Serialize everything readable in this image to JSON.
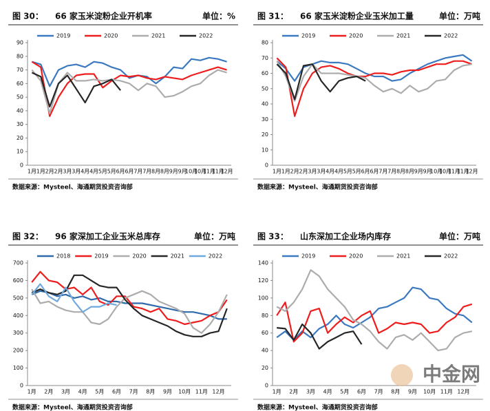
{
  "chart_data": [
    {
      "type": "line",
      "figure": "图 30：",
      "title": "66 家玉米淀粉企业开机率",
      "unit": "单位：%",
      "source": "数据来源：Mysteel、海通期货投资咨询部",
      "categories": [
        "1月",
        "1月",
        "2月",
        "2月",
        "3月",
        "3月",
        "4月",
        "4月",
        "5月",
        "5月",
        "6月",
        "6月",
        "7月",
        "7月",
        "8月",
        "8月",
        "9月",
        "9月",
        "10月",
        "10月",
        "11月",
        "11月",
        "12月"
      ],
      "ylim": [
        0,
        90
      ],
      "yticks": [
        0,
        10,
        20,
        30,
        40,
        50,
        60,
        70,
        80,
        90
      ],
      "series": [
        {
          "name": "2019",
          "color": "#3a78c0",
          "values": [
            76,
            74,
            58,
            70,
            73,
            74,
            72,
            76,
            75,
            72,
            70,
            64,
            66,
            65,
            60,
            65,
            72,
            71,
            78,
            77,
            79,
            78,
            76
          ]
        },
        {
          "name": "2020",
          "color": "#ee1c1c",
          "values": [
            76,
            72,
            36,
            50,
            60,
            66,
            67,
            67,
            57,
            62,
            66,
            65,
            66,
            64,
            63,
            65,
            64,
            63,
            66,
            68,
            70,
            72,
            70
          ]
        },
        {
          "name": "2021",
          "color": "#acacac",
          "values": [
            70,
            62,
            38,
            60,
            68,
            62,
            62,
            63,
            62,
            63,
            62,
            60,
            55,
            60,
            58,
            50,
            51,
            54,
            58,
            60,
            66,
            70,
            68
          ]
        },
        {
          "name": "2022",
          "color": "#262626",
          "values": [
            68,
            65,
            43,
            60,
            66,
            56,
            46,
            58,
            60,
            63,
            55,
            null,
            null,
            null,
            null,
            null,
            null,
            null,
            null,
            null,
            null,
            null,
            null
          ]
        }
      ]
    },
    {
      "type": "line",
      "figure": "图 31：",
      "title": "66 家玉米淀粉企业玉米加工量",
      "unit": "单位：万吨",
      "source": "数据来源：Mysteel、海通期货投资咨询部",
      "categories": [
        "1月",
        "1月",
        "2月",
        "2月",
        "3月",
        "3月",
        "4月",
        "4月",
        "5月",
        "5月",
        "6月",
        "6月",
        "7月",
        "7月",
        "8月",
        "8月",
        "9月",
        "9月",
        "10月",
        "10月",
        "11月",
        "11月",
        "12月"
      ],
      "ylim": [
        0,
        80
      ],
      "yticks": [
        0,
        10,
        20,
        30,
        40,
        50,
        60,
        70,
        80
      ],
      "series": [
        {
          "name": "2019",
          "color": "#3a78c0",
          "values": [
            68,
            63,
            55,
            64,
            66,
            68,
            67,
            67,
            66,
            63,
            60,
            58,
            58,
            55,
            56,
            60,
            63,
            66,
            68,
            70,
            71,
            72,
            68
          ]
        },
        {
          "name": "2020",
          "color": "#ee1c1c",
          "values": [
            70,
            64,
            32,
            50,
            60,
            64,
            65,
            63,
            60,
            58,
            58,
            60,
            60,
            59,
            61,
            62,
            62,
            64,
            66,
            66,
            68,
            68,
            66
          ]
        },
        {
          "name": "2021",
          "color": "#acacac",
          "values": [
            68,
            58,
            42,
            58,
            66,
            60,
            60,
            60,
            59,
            58,
            57,
            52,
            48,
            50,
            47,
            52,
            48,
            50,
            55,
            56,
            62,
            65,
            66
          ]
        },
        {
          "name": "2022",
          "color": "#262626",
          "values": [
            66,
            60,
            43,
            65,
            66,
            55,
            48,
            55,
            57,
            58,
            55,
            null,
            null,
            null,
            null,
            null,
            null,
            null,
            null,
            null,
            null,
            null,
            null
          ]
        }
      ]
    },
    {
      "type": "line",
      "figure": "图 32：",
      "title": "96 家深加工企业玉米总库存",
      "unit": "单位：万吨",
      "source": "数据来源：Mysteel、海通期货投资咨询部",
      "categories": [
        "1月",
        null,
        "2月",
        null,
        "3月",
        null,
        "4月",
        null,
        "5月",
        null,
        "6月",
        null,
        "7月",
        null,
        "8月",
        null,
        "9月",
        null,
        "10月",
        null,
        "11月",
        null,
        "12月",
        null
      ],
      "ylim": [
        0,
        700
      ],
      "yticks": [
        0,
        100,
        200,
        300,
        400,
        500,
        600,
        700
      ],
      "series": [
        {
          "name": "2018",
          "color": "#2f6aaa",
          "values": [
            520,
            540,
            530,
            510,
            520,
            500,
            510,
            490,
            500,
            480,
            480,
            470,
            470,
            470,
            460,
            450,
            440,
            430,
            420,
            420,
            410,
            400,
            380,
            380
          ]
        },
        {
          "name": "2019",
          "color": "#ee1c1c",
          "values": [
            590,
            650,
            600,
            590,
            550,
            560,
            520,
            560,
            480,
            460,
            510,
            510,
            450,
            440,
            420,
            440,
            380,
            370,
            350,
            360,
            370,
            400,
            420,
            490
          ]
        },
        {
          "name": "2020",
          "color": "#acacac",
          "values": [
            550,
            470,
            480,
            450,
            430,
            420,
            420,
            360,
            350,
            380,
            450,
            500,
            520,
            540,
            520,
            480,
            460,
            440,
            410,
            330,
            300,
            350,
            420,
            520
          ]
        },
        {
          "name": "2021",
          "color": "#262626",
          "values": [
            530,
            550,
            530,
            520,
            540,
            630,
            630,
            600,
            570,
            560,
            560,
            490,
            440,
            400,
            380,
            360,
            340,
            310,
            290,
            280,
            280,
            300,
            310,
            440
          ]
        },
        {
          "name": "2022",
          "color": "#6fa8dc",
          "values": [
            520,
            580,
            510,
            480,
            560,
            480,
            420,
            450,
            450,
            470,
            460,
            null,
            null,
            null,
            null,
            null,
            null,
            null,
            null,
            null,
            null,
            null,
            null,
            null
          ]
        }
      ]
    },
    {
      "type": "line",
      "figure": "图 33：",
      "title": "山东深加工企业场内库存",
      "unit": "单位：万吨",
      "source": "数据来源：Mysteel、海通期货投资咨询部",
      "watermark": "中金网",
      "categories": [
        "1月",
        null,
        "2月",
        null,
        "3月",
        null,
        "4月",
        null,
        "5月",
        null,
        "6月",
        null,
        "7月",
        null,
        "8月",
        null,
        "9月",
        null,
        "10月",
        null,
        "11月",
        null,
        "12月",
        null
      ],
      "ylim": [
        0,
        140
      ],
      "yticks": [
        0,
        20,
        40,
        60,
        80,
        100,
        120,
        140
      ],
      "series": [
        {
          "name": "2019",
          "color": "#3a78c0",
          "values": [
            55,
            62,
            52,
            62,
            55,
            65,
            70,
            80,
            70,
            66,
            72,
            78,
            88,
            90,
            95,
            100,
            112,
            110,
            100,
            98,
            88,
            82,
            80,
            72
          ]
        },
        {
          "name": "2020",
          "color": "#ee1c1c",
          "values": [
            80,
            95,
            50,
            60,
            85,
            88,
            60,
            70,
            78,
            72,
            80,
            85,
            60,
            65,
            72,
            70,
            72,
            70,
            60,
            62,
            72,
            78,
            90,
            93
          ]
        },
        {
          "name": "2021",
          "color": "#acacac",
          "values": [
            90,
            85,
            95,
            110,
            132,
            125,
            110,
            100,
            90,
            75,
            70,
            62,
            50,
            42,
            55,
            58,
            52,
            60,
            50,
            40,
            42,
            55,
            60,
            62
          ]
        },
        {
          "name": "2022",
          "color": "#262626",
          "values": [
            66,
            65,
            52,
            70,
            60,
            42,
            50,
            55,
            60,
            62,
            47,
            null,
            null,
            null,
            null,
            null,
            null,
            null,
            null,
            null,
            null,
            null,
            null,
            null
          ]
        }
      ]
    }
  ]
}
